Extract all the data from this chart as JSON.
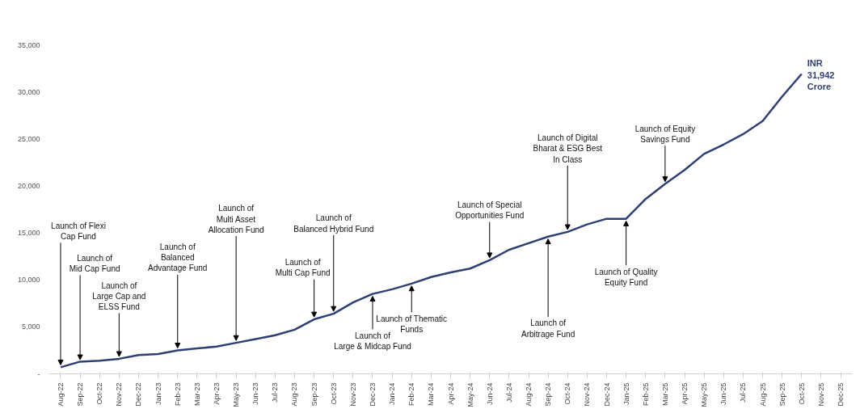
{
  "chart_data": {
    "type": "line",
    "categories": [
      "Aug-22",
      "Sep-22",
      "Oct-22",
      "Nov-22",
      "Dec-22",
      "Jan-23",
      "Feb-23",
      "Mar-23",
      "Apr-23",
      "May-23",
      "Jun-23",
      "Jul-23",
      "Aug-23",
      "Sep-23",
      "Oct-23",
      "Nov-23",
      "Dec-23",
      "Jan-24",
      "Feb-24",
      "Mar-24",
      "Apr-24",
      "May-24",
      "Jun-24",
      "Jul-24",
      "Aug-24",
      "Sep-24",
      "Oct-24",
      "Nov-24",
      "Dec-24",
      "Jan-25",
      "Feb-25",
      "Mar-25",
      "Apr-25",
      "May-25",
      "Jun-25",
      "Jul-25",
      "Aug-25",
      "Sep-25",
      "Oct-25",
      "Nov-25",
      "Dec-25"
    ],
    "series": [
      {
        "color": "#2e3f73",
        "values": [
          700,
          1300,
          1400,
          1600,
          2000,
          2100,
          2500,
          2700,
          2900,
          3300,
          3700,
          4100,
          4700,
          5800,
          6400,
          7600,
          8500,
          9000,
          9600,
          10300,
          10800,
          11200,
          12100,
          13200,
          13900,
          14600,
          15100,
          15900,
          16500,
          16500,
          18600,
          20200,
          21700,
          23400,
          24400,
          25500,
          26900,
          29500,
          31900,
          null,
          null
        ]
      }
    ],
    "ylim": [
      0,
      35000
    ],
    "yticks": [
      {
        "value": 0,
        "label": "-"
      },
      {
        "value": 5000,
        "label": "5,000"
      },
      {
        "value": 10000,
        "label": "10,000"
      },
      {
        "value": 15000,
        "label": "15,000"
      },
      {
        "value": 20000,
        "label": "20,000"
      },
      {
        "value": 25000,
        "label": "25,000"
      },
      {
        "value": 30000,
        "label": "30,000"
      },
      {
        "value": 35000,
        "label": "35,000"
      }
    ],
    "grid": false,
    "annotations": [
      {
        "text": "Launch of Flexi\nCap Fund",
        "x": "Aug-22",
        "y": 700
      },
      {
        "text": "Launch of\nMid Cap Fund",
        "x": "Sep-22",
        "y": 1250
      },
      {
        "text": "Launch of\nLarge Cap and\nELSS Fund",
        "x": "Nov-22",
        "y": 1600
      },
      {
        "text": "Launch of\nBalanced\nAdvantage Fund",
        "x": "Feb-23",
        "y": 2500
      },
      {
        "text": "Launch of\nMulti Asset\nAllocation Fund",
        "x": "May-23",
        "y": 3300
      },
      {
        "text": "Launch of\nMulti Cap Fund",
        "x": "Sep-23",
        "y": 5800
      },
      {
        "text": "Launch of\nBalanced Hybrid Fund",
        "x": "Oct-23",
        "y": 6400
      },
      {
        "text": "Launch of\nLarge & Midcap Fund",
        "x": "Dec-23",
        "y": 8500
      },
      {
        "text": "Launch of Thematic\nFunds",
        "x": "Feb-24",
        "y": 9600
      },
      {
        "text": "Launch of Special\nOpportunities Fund",
        "x": "Jun-24",
        "y": 12100
      },
      {
        "text": "Launch of\nArbitrage Fund",
        "x": "Sep-24",
        "y": 14600
      },
      {
        "text": "Launch of Digital\nBharat & ESG Best\nIn Class",
        "x": "Oct-24",
        "y": 15100
      },
      {
        "text": "Launch of Quality\nEquity Fund",
        "x": "Jan-25",
        "y": 16500
      },
      {
        "text": "Launch of Equity\nSavings Fund",
        "x": "Mar-25",
        "y": 20200
      },
      {
        "text": "INR\n31,942\nCrore",
        "x": "Oct-25",
        "y": 31942
      }
    ]
  }
}
